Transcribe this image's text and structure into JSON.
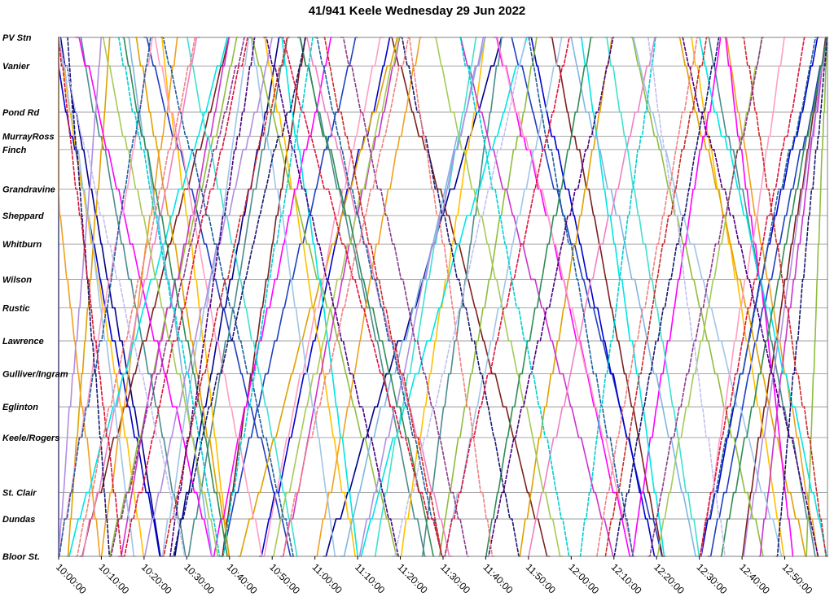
{
  "chart_data": {
    "type": "line",
    "title": "41/941 Keele Wednesday 29 Jun 2022",
    "xlabel": "",
    "ylabel": "",
    "x_range": [
      "10:00:00",
      "13:00:00"
    ],
    "grid": true,
    "legend": "none",
    "stops": [
      {
        "name": "PV Stn",
        "distance_km": 0.0
      },
      {
        "name": "Vanier",
        "distance_km": 0.65
      },
      {
        "name": "Pond Rd",
        "distance_km": 1.7
      },
      {
        "name": "MurrayRoss",
        "distance_km": 2.25
      },
      {
        "name": "Finch",
        "distance_km": 2.55
      },
      {
        "name": "Grandravine",
        "distance_km": 3.45
      },
      {
        "name": "Sheppard",
        "distance_km": 4.05
      },
      {
        "name": "Whitburn",
        "distance_km": 4.7
      },
      {
        "name": "Wilson",
        "distance_km": 5.5
      },
      {
        "name": "Rustic",
        "distance_km": 6.15
      },
      {
        "name": "Lawrence",
        "distance_km": 6.9
      },
      {
        "name": "Gulliver/Ingram",
        "distance_km": 7.65
      },
      {
        "name": "Eglinton",
        "distance_km": 8.4
      },
      {
        "name": "Keele/Rogers",
        "distance_km": 9.1
      },
      {
        "name": "St. Clair",
        "distance_km": 10.35
      },
      {
        "name": "Dundas",
        "distance_km": 10.95
      },
      {
        "name": "Bloor St.",
        "distance_km": 11.8
      }
    ],
    "time_ticks": [
      "10:00:00",
      "10:10:00",
      "10:20:00",
      "10:30:00",
      "10:40:00",
      "10:50:00",
      "11:00:00",
      "11:10:00",
      "11:20:00",
      "11:30:00",
      "11:40:00",
      "11:50:00",
      "12:00:00",
      "12:10:00",
      "12:20:00",
      "12:30:00",
      "12:40:00",
      "12:50:00"
    ],
    "series": [
      {
        "color": "#00008b",
        "style": "solid",
        "trips": [
          [
            "09:55:00",
            "09:59:00",
            "down"
          ],
          [
            "10:00:00",
            "10:24:00",
            "down"
          ],
          [
            "10:27:00",
            "10:52:00",
            "up"
          ],
          [
            "11:02:00",
            "11:44:00",
            "up"
          ]
        ]
      },
      {
        "color": "#1f3fbf",
        "style": "solid",
        "trips": [
          [
            "10:20:00",
            "10:55:00",
            "down"
          ],
          [
            "10:38:00",
            "11:10:00",
            "up"
          ],
          [
            "11:46:00",
            "12:22:00",
            "down"
          ],
          [
            "12:32:00",
            "13:00:00",
            "up"
          ]
        ]
      },
      {
        "color": "#0000cd",
        "style": "solid",
        "trips": [
          [
            "09:58:00",
            "10:24:00",
            "down"
          ],
          [
            "10:47:00",
            "11:18:00",
            "up"
          ],
          [
            "11:50:00",
            "12:20:00",
            "down"
          ],
          [
            "12:30:00",
            "12:58:00",
            "up"
          ]
        ]
      },
      {
        "color": "#7b1f1f",
        "style": "solid",
        "trips": [
          [
            "10:05:00",
            "10:40:00",
            "up"
          ],
          [
            "10:38:00",
            "10:58:00",
            "up"
          ],
          [
            "11:18:00",
            "11:55:00",
            "down"
          ],
          [
            "11:55:00",
            "12:22:00",
            "down"
          ],
          [
            "12:40:00",
            "13:00:00",
            "up"
          ]
        ]
      },
      {
        "color": "#4a8c8c",
        "style": "solid",
        "trips": [
          [
            "10:05:00",
            "10:30:00",
            "down"
          ],
          [
            "10:30:00",
            "10:54:00",
            "up"
          ],
          [
            "10:56:00",
            "11:26:00",
            "down"
          ],
          [
            "11:25:00",
            "11:44:00",
            "up"
          ],
          [
            "12:32:00",
            "12:58:00",
            "down"
          ]
        ]
      },
      {
        "color": "#8fbc3f",
        "style": "solid",
        "trips": [
          [
            "10:12:00",
            "10:42:00",
            "up"
          ],
          [
            "10:45:00",
            "11:20:00",
            "down"
          ],
          [
            "11:29:00",
            "11:52:00",
            "up"
          ],
          [
            "12:14:00",
            "12:45:00",
            "down"
          ],
          [
            "12:55:00",
            "13:00:00",
            "up"
          ]
        ]
      },
      {
        "color": "#ffc000",
        "style": "solid",
        "trips": [
          [
            "10:00:00",
            "10:20:00",
            "down"
          ],
          [
            "10:24:00",
            "10:40:00",
            "down"
          ],
          [
            "10:48:00",
            "11:10:00",
            "down"
          ],
          [
            "11:20:00",
            "11:40:00",
            "up"
          ],
          [
            "12:28:00",
            "12:50:00",
            "down"
          ]
        ]
      },
      {
        "color": "#e0a000",
        "style": "solid",
        "trips": [
          [
            "10:02:00",
            "10:12:00",
            "up"
          ],
          [
            "10:18:00",
            "10:40:00",
            "down"
          ],
          [
            "10:42:00",
            "11:20:00",
            "up"
          ],
          [
            "11:48:00",
            "12:10:00",
            "up"
          ],
          [
            "12:25:00",
            "12:55:00",
            "down"
          ]
        ]
      },
      {
        "color": "#f0a020",
        "style": "solid",
        "trips": [
          [
            "09:55:00",
            "10:10:00",
            "down"
          ],
          [
            "10:10:00",
            "10:28:00",
            "up"
          ],
          [
            "11:00:00",
            "11:25:00",
            "up"
          ],
          [
            "12:36:00",
            "12:58:00",
            "down"
          ]
        ]
      },
      {
        "color": "#ff00ff",
        "style": "solid",
        "trips": [
          [
            "10:04:00",
            "10:36:00",
            "down"
          ],
          [
            "10:36:00",
            "11:04:00",
            "up"
          ],
          [
            "11:42:00",
            "12:14:00",
            "down"
          ],
          [
            "12:14:00",
            "12:35:00",
            "up"
          ],
          [
            "12:36:00",
            "12:52:00",
            "down"
          ]
        ]
      },
      {
        "color": "#cc33cc",
        "style": "solid",
        "trips": [
          [
            "10:14:00",
            "10:40:00",
            "up"
          ],
          [
            "10:52:00",
            "11:20:00",
            "up"
          ],
          [
            "11:34:00",
            "12:10:00",
            "down"
          ],
          [
            "12:44:00",
            "13:00:00",
            "up"
          ]
        ]
      },
      {
        "color": "#ff9ec5",
        "style": "solid",
        "trips": [
          [
            "10:00:00",
            "10:22:00",
            "up"
          ],
          [
            "10:22:00",
            "10:48:00",
            "down"
          ],
          [
            "10:48:00",
            "11:16:00",
            "up"
          ],
          [
            "11:42:00",
            "12:15:00",
            "down"
          ],
          [
            "12:30:00",
            "12:50:00",
            "up"
          ]
        ]
      },
      {
        "color": "#f080c0",
        "style": "solid",
        "trips": [
          [
            "10:05:00",
            "10:33:00",
            "up"
          ],
          [
            "10:58:00",
            "11:32:00",
            "down"
          ],
          [
            "11:50:00",
            "12:20:00",
            "up"
          ]
        ]
      },
      {
        "color": "#00e5e5",
        "style": "solid",
        "trips": [
          [
            "10:02:00",
            "10:40:00",
            "up"
          ],
          [
            "10:52:00",
            "11:10:00",
            "down"
          ],
          [
            "11:10:00",
            "11:50:00",
            "up"
          ],
          [
            "12:02:00",
            "12:22:00",
            "down"
          ],
          [
            "12:30:00",
            "13:00:00",
            "down"
          ]
        ]
      },
      {
        "color": "#40e0d0",
        "style": "solid",
        "trips": [
          [
            "10:30:00",
            "10:56:00",
            "down"
          ],
          [
            "11:14:00",
            "11:38:00",
            "up"
          ],
          [
            "12:08:00",
            "12:30:00",
            "down"
          ]
        ]
      },
      {
        "color": "#9fc5e8",
        "style": "solid",
        "trips": [
          [
            "10:00:00",
            "10:18:00",
            "down"
          ],
          [
            "10:24:00",
            "10:45:00",
            "up"
          ],
          [
            "10:45:00",
            "11:05:00",
            "down"
          ],
          [
            "11:30:00",
            "11:58:00",
            "up"
          ],
          [
            "12:14:00",
            "12:50:00",
            "down"
          ]
        ]
      },
      {
        "color": "#7fb6e0",
        "style": "solid",
        "trips": [
          [
            "10:16:00",
            "10:36:00",
            "down"
          ],
          [
            "11:06:00",
            "11:40:00",
            "up"
          ],
          [
            "12:00:00",
            "12:30:00",
            "down"
          ]
        ]
      },
      {
        "color": "#b08ee0",
        "style": "solid",
        "trips": [
          [
            "10:00:00",
            "10:10:00",
            "up"
          ],
          [
            "10:20:00",
            "10:50:00",
            "up"
          ],
          [
            "11:10:00",
            "11:40:00",
            "up"
          ],
          [
            "12:40:00",
            "13:00:00",
            "up"
          ]
        ]
      },
      {
        "color": "#a7c957",
        "style": "solid",
        "trips": [
          [
            "10:10:00",
            "10:38:00",
            "down"
          ],
          [
            "10:50:00",
            "11:20:00",
            "up"
          ],
          [
            "11:28:00",
            "11:58:00",
            "down"
          ],
          [
            "12:20:00",
            "12:45:00",
            "up"
          ]
        ]
      },
      {
        "color": "#2e8b57",
        "style": "solid",
        "trips": [
          [
            "10:15:00",
            "10:40:00",
            "down"
          ],
          [
            "10:56:00",
            "11:28:00",
            "down"
          ],
          [
            "11:40:00",
            "12:05:00",
            "up"
          ],
          [
            "12:35:00",
            "13:00:00",
            "up"
          ]
        ]
      },
      {
        "color": "#1f5f9f",
        "style": "dashed",
        "trips": [
          [
            "10:00:00",
            "10:22:00",
            "up"
          ],
          [
            "10:24:00",
            "10:55:00",
            "down"
          ],
          [
            "11:00:00",
            "11:30:00",
            "down"
          ],
          [
            "11:50:00",
            "12:15:00",
            "down"
          ],
          [
            "12:30:00",
            "12:58:00",
            "up"
          ]
        ]
      },
      {
        "color": "#191970",
        "style": "dashed",
        "trips": [
          [
            "10:02:00",
            "10:12:00",
            "down"
          ],
          [
            "10:26:00",
            "10:58:00",
            "up"
          ],
          [
            "11:20:00",
            "11:48:00",
            "down"
          ],
          [
            "12:10:00",
            "12:35:00",
            "up"
          ],
          [
            "12:48:00",
            "13:00:00",
            "up"
          ]
        ]
      },
      {
        "color": "#dc143c",
        "style": "dashed",
        "trips": [
          [
            "10:00:00",
            "10:15:00",
            "down"
          ],
          [
            "10:15:00",
            "10:45:00",
            "up"
          ],
          [
            "10:52:00",
            "11:30:00",
            "down"
          ],
          [
            "11:30:00",
            "12:00:00",
            "up"
          ],
          [
            "12:30:00",
            "12:55:00",
            "up"
          ]
        ]
      },
      {
        "color": "#cc2a2a",
        "style": "dashed",
        "trips": [
          [
            "10:24:00",
            "10:54:00",
            "up"
          ],
          [
            "11:02:00",
            "11:30:00",
            "down"
          ],
          [
            "12:08:00",
            "12:32:00",
            "up"
          ],
          [
            "12:40:00",
            "13:00:00",
            "down"
          ]
        ]
      },
      {
        "color": "#4b0082",
        "style": "dashed",
        "trips": [
          [
            "10:26:00",
            "10:46:00",
            "up"
          ],
          [
            "10:48:00",
            "11:20:00",
            "down"
          ],
          [
            "11:40:00",
            "12:10:00",
            "up"
          ],
          [
            "12:26:00",
            "12:58:00",
            "down"
          ]
        ]
      },
      {
        "color": "#8b3a8b",
        "style": "dashed",
        "trips": [
          [
            "10:12:00",
            "10:44:00",
            "up"
          ],
          [
            "11:06:00",
            "11:36:00",
            "down"
          ],
          [
            "12:18:00",
            "12:45:00",
            "up"
          ]
        ]
      },
      {
        "color": "#00ced1",
        "style": "dashed",
        "trips": [
          [
            "10:14:00",
            "10:38:00",
            "down"
          ],
          [
            "10:38:00",
            "11:00:00",
            "up"
          ],
          [
            "11:34:00",
            "12:00:00",
            "down"
          ],
          [
            "12:02:00",
            "12:20:00",
            "up"
          ]
        ]
      },
      {
        "color": "#f08080",
        "style": "dashed",
        "trips": [
          [
            "10:04:00",
            "10:32:00",
            "up"
          ],
          [
            "10:52:00",
            "11:22:00",
            "up"
          ],
          [
            "11:22:00",
            "11:42:00",
            "down"
          ],
          [
            "12:06:00",
            "12:30:00",
            "up"
          ]
        ]
      },
      {
        "color": "#c0c0f0",
        "style": "dashed",
        "trips": [
          [
            "10:00:00",
            "10:30:00",
            "down"
          ],
          [
            "11:18:00",
            "11:50:00",
            "up"
          ],
          [
            "12:18:00",
            "12:36:00",
            "down"
          ]
        ]
      }
    ]
  }
}
